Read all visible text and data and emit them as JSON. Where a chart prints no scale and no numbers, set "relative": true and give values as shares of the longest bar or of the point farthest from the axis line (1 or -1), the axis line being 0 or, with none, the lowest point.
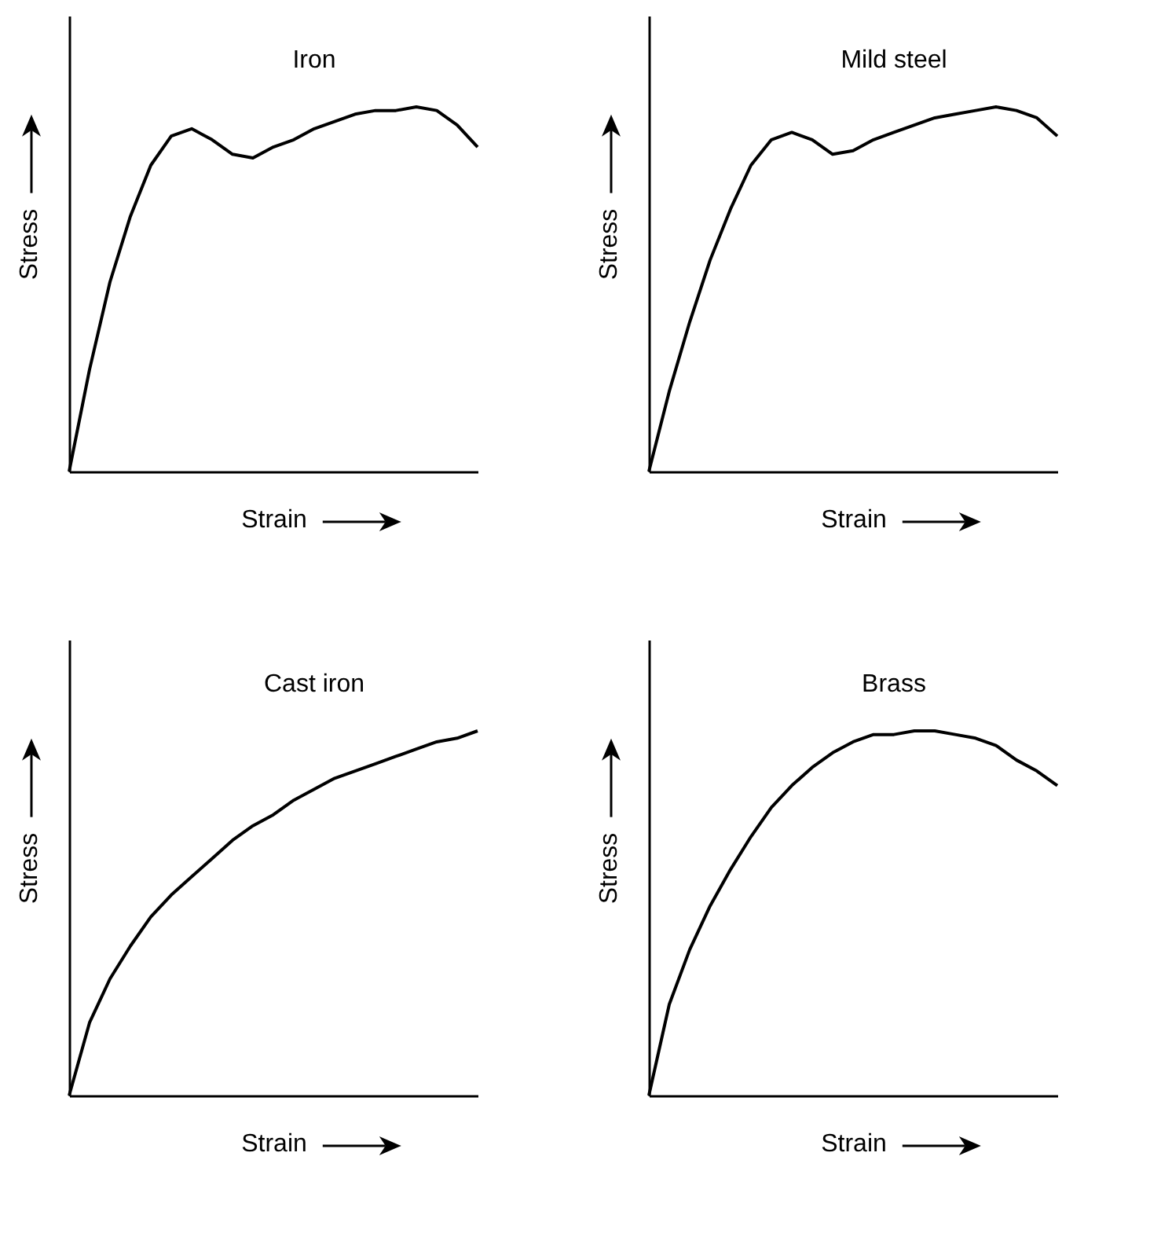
{
  "chart_data": [
    {
      "type": "line",
      "relative": true,
      "xlabel": "Strain",
      "ylabel": "Stress",
      "categories": [
        null,
        null,
        null,
        null,
        null,
        null,
        null,
        null,
        null,
        null,
        null,
        null,
        null,
        null,
        null,
        null,
        null,
        null,
        null,
        null,
        null
      ],
      "series": [
        {
          "name": "Iron",
          "color": "#000000",
          "values": [
            0,
            0.28,
            0.52,
            0.7,
            0.84,
            0.92,
            0.94,
            0.91,
            0.87,
            0.86,
            0.89,
            0.91,
            0.94,
            0.96,
            0.98,
            0.99,
            0.99,
            1,
            0.99,
            0.95,
            0.89
          ]
        }
      ]
    },
    {
      "type": "line",
      "relative": true,
      "xlabel": "Strain",
      "ylabel": "Stress",
      "categories": [
        null,
        null,
        null,
        null,
        null,
        null,
        null,
        null,
        null,
        null,
        null,
        null,
        null,
        null,
        null,
        null,
        null,
        null,
        null,
        null,
        null
      ],
      "series": [
        {
          "name": "Mild steel",
          "color": "#000000",
          "values": [
            0,
            0.22,
            0.41,
            0.58,
            0.72,
            0.84,
            0.91,
            0.93,
            0.91,
            0.87,
            0.88,
            0.91,
            0.93,
            0.95,
            0.97,
            0.98,
            0.99,
            1,
            0.99,
            0.97,
            0.92
          ]
        }
      ]
    },
    {
      "type": "line",
      "relative": true,
      "xlabel": "Strain",
      "ylabel": "Stress",
      "categories": [
        null,
        null,
        null,
        null,
        null,
        null,
        null,
        null,
        null,
        null,
        null,
        null,
        null,
        null,
        null,
        null,
        null,
        null,
        null,
        null,
        null
      ],
      "series": [
        {
          "name": "Cast iron",
          "color": "#000000",
          "values": [
            0,
            0.2,
            0.32,
            0.41,
            0.49,
            0.55,
            0.6,
            0.65,
            0.7,
            0.74,
            0.77,
            0.81,
            0.84,
            0.87,
            0.89,
            0.91,
            0.93,
            0.95,
            0.97,
            0.98,
            1
          ]
        }
      ]
    },
    {
      "type": "line",
      "relative": true,
      "xlabel": "Strain",
      "ylabel": "Stress",
      "categories": [
        null,
        null,
        null,
        null,
        null,
        null,
        null,
        null,
        null,
        null,
        null,
        null,
        null,
        null,
        null,
        null,
        null,
        null,
        null,
        null,
        null
      ],
      "series": [
        {
          "name": "Brass",
          "color": "#000000",
          "values": [
            0,
            0.25,
            0.4,
            0.52,
            0.62,
            0.71,
            0.79,
            0.85,
            0.9,
            0.94,
            0.97,
            0.99,
            0.99,
            1,
            1,
            0.99,
            0.98,
            0.96,
            0.92,
            0.89,
            0.85
          ]
        }
      ]
    }
  ]
}
